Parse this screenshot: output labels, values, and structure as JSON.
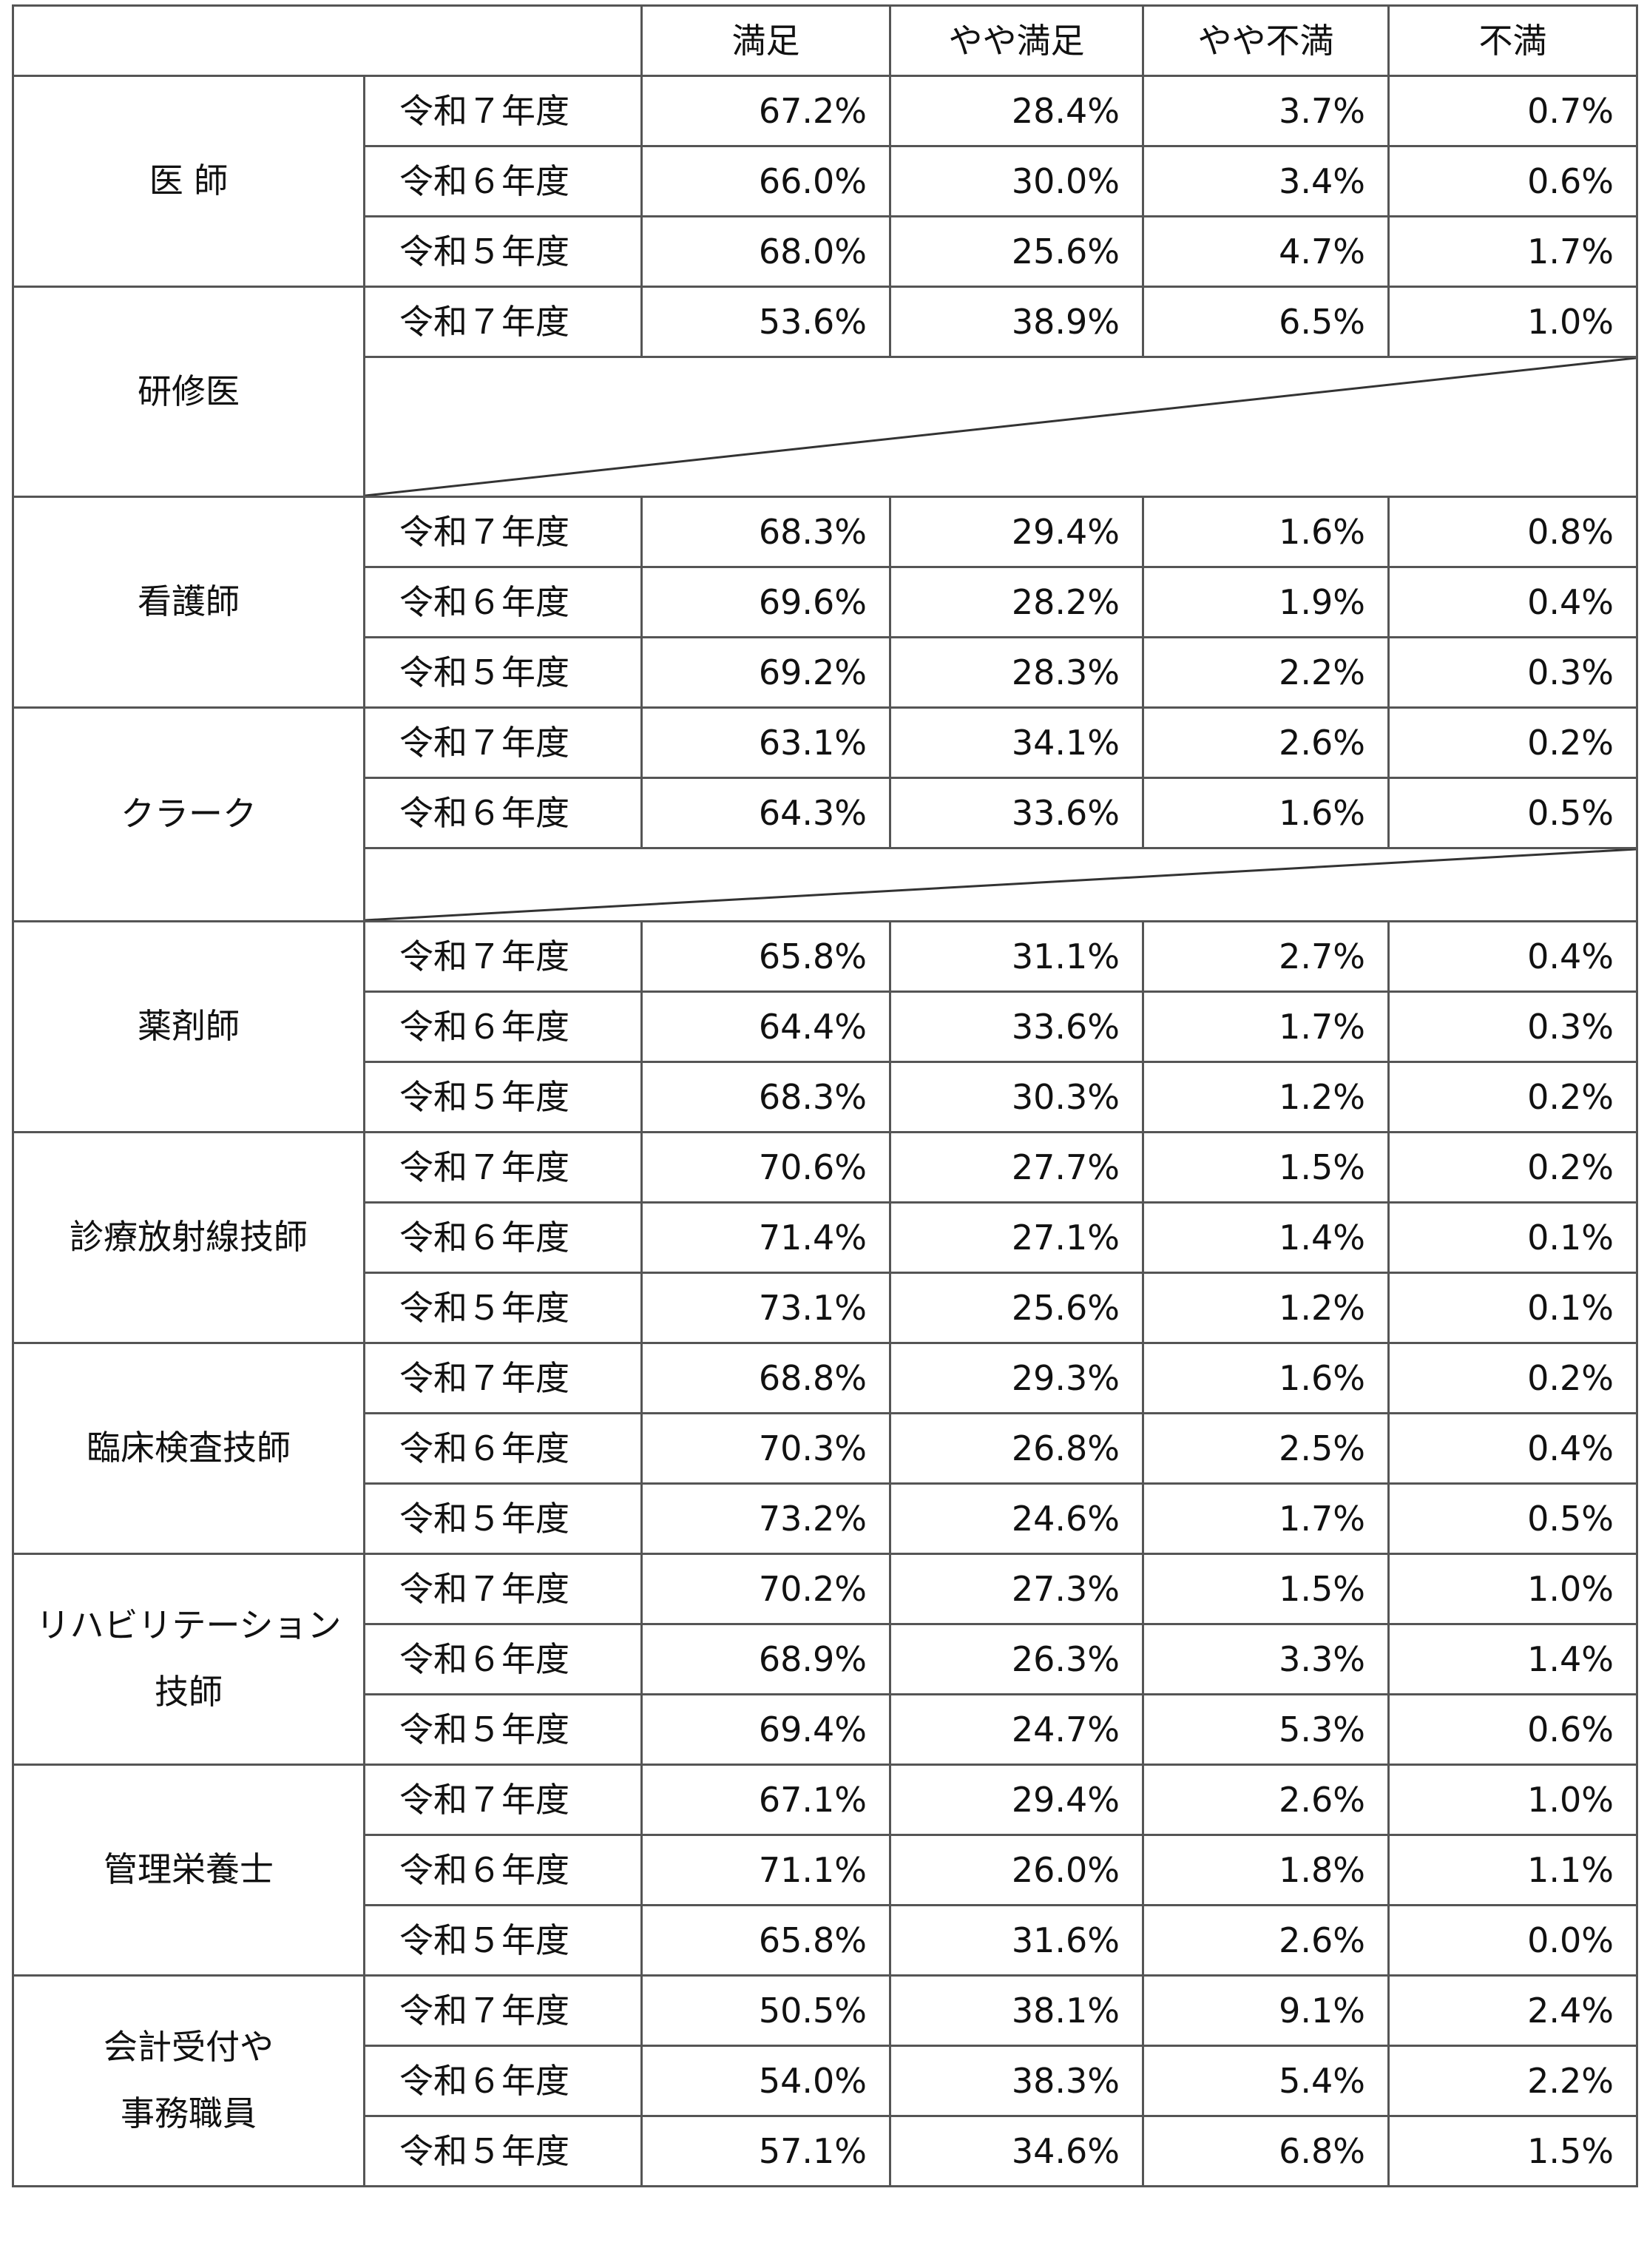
{
  "header": [
    "",
    "満足",
    "やや満足",
    "やや不満",
    "不満"
  ],
  "groups": [
    {
      "category": "医 師",
      "rows": [
        {
          "year": "令和７年度",
          "values": [
            "67.2%",
            "28.4%",
            "3.7%",
            "0.7%"
          ]
        },
        {
          "year": "令和６年度",
          "values": [
            "66.0%",
            "30.0%",
            "3.4%",
            "0.6%"
          ]
        },
        {
          "year": "令和５年度",
          "values": [
            "68.0%",
            "25.6%",
            "4.7%",
            "1.7%"
          ]
        }
      ]
    },
    {
      "category": "研修医",
      "rows": [
        {
          "year": "令和７年度",
          "values": [
            "53.6%",
            "38.9%",
            "6.5%",
            "1.0%"
          ]
        }
      ]
    },
    {
      "category": "看護師",
      "rows": [
        {
          "year": "令和７年度",
          "values": [
            "68.3%",
            "29.4%",
            "1.6%",
            "0.8%"
          ]
        },
        {
          "year": "令和６年度",
          "values": [
            "69.6%",
            "28.2%",
            "1.9%",
            "0.4%"
          ]
        },
        {
          "year": "令和５年度",
          "values": [
            "69.2%",
            "28.3%",
            "2.2%",
            "0.3%"
          ]
        }
      ]
    },
    {
      "category": "クラーク",
      "rows": [
        {
          "year": "令和７年度",
          "values": [
            "63.1%",
            "34.1%",
            "2.6%",
            "0.2%"
          ]
        },
        {
          "year": "令和６年度",
          "values": [
            "64.3%",
            "33.6%",
            "1.6%",
            "0.5%"
          ]
        }
      ]
    },
    {
      "category": "薬剤師",
      "rows": [
        {
          "year": "令和７年度",
          "values": [
            "65.8%",
            "31.1%",
            "2.7%",
            "0.4%"
          ]
        },
        {
          "year": "令和６年度",
          "values": [
            "64.4%",
            "33.6%",
            "1.7%",
            "0.3%"
          ]
        },
        {
          "year": "令和５年度",
          "values": [
            "68.3%",
            "30.3%",
            "1.2%",
            "0.2%"
          ]
        }
      ]
    },
    {
      "category": "診療放射線技師",
      "rows": [
        {
          "year": "令和７年度",
          "values": [
            "70.6%",
            "27.7%",
            "1.5%",
            "0.2%"
          ]
        },
        {
          "year": "令和６年度",
          "values": [
            "71.4%",
            "27.1%",
            "1.4%",
            "0.1%"
          ]
        },
        {
          "year": "令和５年度",
          "values": [
            "73.1%",
            "25.6%",
            "1.2%",
            "0.1%"
          ]
        }
      ]
    },
    {
      "category": "臨床検査技師",
      "rows": [
        {
          "year": "令和７年度",
          "values": [
            "68.8%",
            "29.3%",
            "1.6%",
            "0.2%"
          ]
        },
        {
          "year": "令和６年度",
          "values": [
            "70.3%",
            "26.8%",
            "2.5%",
            "0.4%"
          ]
        },
        {
          "year": "令和５年度",
          "values": [
            "73.2%",
            "24.6%",
            "1.7%",
            "0.5%"
          ]
        }
      ]
    },
    {
      "category": "リハビリテーション\n技師",
      "rows": [
        {
          "year": "令和７年度",
          "values": [
            "70.2%",
            "27.3%",
            "1.5%",
            "1.0%"
          ]
        },
        {
          "year": "令和６年度",
          "values": [
            "68.9%",
            "26.3%",
            "3.3%",
            "1.4%"
          ]
        },
        {
          "year": "令和５年度",
          "values": [
            "69.4%",
            "24.7%",
            "5.3%",
            "0.6%"
          ]
        }
      ]
    },
    {
      "category": "管理栄養士",
      "rows": [
        {
          "year": "令和７年度",
          "values": [
            "67.1%",
            "29.4%",
            "2.6%",
            "1.0%"
          ]
        },
        {
          "year": "令和６年度",
          "values": [
            "71.1%",
            "26.0%",
            "1.8%",
            "1.1%"
          ]
        },
        {
          "year": "令和５年度",
          "values": [
            "65.8%",
            "31.6%",
            "2.6%",
            "0.0%"
          ]
        }
      ]
    },
    {
      "category": "会計受付や\n事務職員",
      "rows": [
        {
          "year": "令和７年度",
          "values": [
            "50.5%",
            "38.1%",
            "9.1%",
            "2.4%"
          ]
        },
        {
          "year": "令和６年度",
          "values": [
            "54.0%",
            "38.3%",
            "5.4%",
            "2.2%"
          ]
        },
        {
          "year": "令和５年度",
          "values": [
            "57.1%",
            "34.6%",
            "6.8%",
            "1.5%"
          ]
        }
      ]
    }
  ]
}
